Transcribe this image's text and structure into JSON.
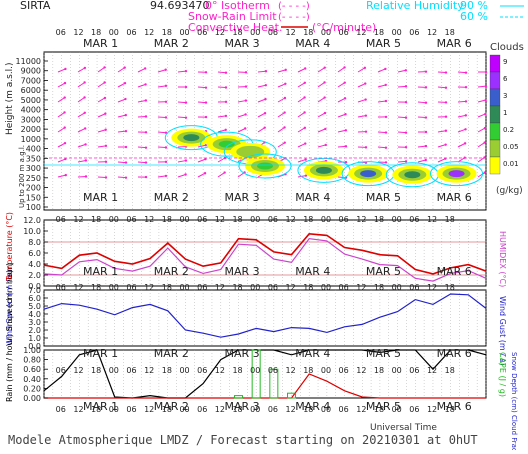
{
  "header": {
    "site": "SIRTA",
    "coords": "94.693470",
    "legend_isotherm": "0° Isotherm",
    "legend_snow_rain": "Snow-Rain Limit",
    "legend_convective": "Convective Heat.",
    "legend_convective_unit": "(°C/minute)",
    "legend_isotherm_box": "(- - - -)",
    "legend_snow_box": "(- - - -)",
    "rh_label": "Relative Humidity",
    "rh_90": "90 %",
    "rh_60": "60 %",
    "colors": {
      "magenta": "#ff22cc",
      "cyan": "#00e0ff",
      "red": "#dd0000",
      "blue": "#2222cc"
    }
  },
  "footer": {
    "title": "Modele Atmospherique LMDZ / Forecast starting on 20210301 at 0hUT",
    "universal_time": "Universal Time"
  },
  "time_axis": {
    "days": [
      "MAR 1",
      "MAR 2",
      "MAR 3",
      "MAR 4",
      "MAR 5",
      "MAR 6"
    ],
    "hour_ticks": [
      "06",
      "12",
      "18",
      "00",
      "06",
      "12",
      "18",
      "00",
      "06",
      "12",
      "18",
      "00",
      "06",
      "12",
      "18",
      "00",
      "06",
      "12",
      "18",
      "00",
      "06",
      "12",
      "18"
    ]
  },
  "cloud_scale": {
    "title": "Clouds",
    "unit": "(g/kg)",
    "labels": [
      "9",
      "6",
      "3",
      "1",
      "0.2",
      "0.05",
      "0.01"
    ],
    "colors": [
      "#c000ff",
      "#9b30ff",
      "#3a5fcd",
      "#2e8b57",
      "#32cd32",
      "#9acd32",
      "#ffff00"
    ]
  },
  "chart_data": [
    {
      "type": "heatmap",
      "ylabel": "Height (m a.s.l.)",
      "ylabel2": "Up to 200 m a.g.l.",
      "y_ticks": [
        "11000",
        "9000",
        "7000",
        "6000",
        "5000",
        "4000",
        "3000",
        "2000",
        "1000",
        "400",
        "350",
        "300",
        "250",
        "200",
        "150",
        "100"
      ],
      "x_range": [
        0,
        150
      ],
      "cloud_blobs": [
        {
          "x": 50,
          "y": 4800,
          "level": 3
        },
        {
          "x": 62,
          "y": 4200,
          "level": 2
        },
        {
          "x": 70,
          "y": 3500,
          "level": 1
        },
        {
          "x": 75,
          "y": 2200,
          "level": 2
        },
        {
          "x": 95,
          "y": 1800,
          "level": 3
        },
        {
          "x": 110,
          "y": 1500,
          "level": 4
        },
        {
          "x": 125,
          "y": 1400,
          "level": 3
        },
        {
          "x": 140,
          "y": 1500,
          "level": 5
        }
      ]
    },
    {
      "type": "line",
      "ylabel": "Temperature (°C)",
      "ylabel_right": "HUMIDEX (°C)",
      "y_ticks": [
        "12.0",
        "10.0",
        "8.0",
        "6.0",
        "4.0",
        "2.0",
        "0.0"
      ],
      "ylim": [
        0,
        12
      ],
      "x": [
        0,
        6,
        12,
        18,
        24,
        30,
        36,
        42,
        48,
        54,
        60,
        66,
        72,
        78,
        84,
        90,
        96,
        102,
        108,
        114,
        120,
        126,
        132,
        138,
        144,
        150
      ],
      "series": [
        {
          "name": "Temperature",
          "color": "#dd0000",
          "values": [
            3.8,
            3.2,
            5.6,
            6.0,
            4.5,
            4.0,
            5.0,
            7.8,
            4.9,
            3.6,
            4.2,
            8.6,
            8.4,
            6.2,
            5.7,
            9.5,
            9.2,
            7.0,
            6.5,
            5.7,
            5.5,
            3.0,
            2.2,
            3.3,
            3.9,
            2.7
          ]
        },
        {
          "name": "Humidex",
          "color": "#cc44cc",
          "values": [
            2.2,
            2.0,
            4.4,
            4.8,
            3.2,
            2.7,
            3.6,
            6.9,
            3.5,
            2.3,
            3.0,
            7.6,
            7.4,
            4.9,
            4.3,
            8.6,
            8.2,
            5.8,
            4.9,
            3.9,
            3.7,
            1.4,
            0.9,
            2.3,
            2.8,
            1.4
          ]
        }
      ]
    },
    {
      "type": "line",
      "ylabel": "Wind Speed (m / s)",
      "ylabel_right": "Wind Gust (m / s)",
      "y_ticks": [
        "7.0",
        "6.0",
        "5.0",
        "4.0",
        "3.0",
        "2.0",
        "1.0",
        "0.0"
      ],
      "ylim": [
        0,
        7
      ],
      "x": [
        0,
        6,
        12,
        18,
        24,
        30,
        36,
        42,
        48,
        54,
        60,
        66,
        72,
        78,
        84,
        90,
        96,
        102,
        108,
        114,
        120,
        126,
        132,
        138,
        144,
        150
      ],
      "series": [
        {
          "name": "Wind Speed",
          "color": "#2222cc",
          "values": [
            4.6,
            5.3,
            5.1,
            4.6,
            3.9,
            4.8,
            5.2,
            4.4,
            2.0,
            1.6,
            1.1,
            1.5,
            2.2,
            1.8,
            2.3,
            2.2,
            1.7,
            2.4,
            2.7,
            3.6,
            4.3,
            5.8,
            5.2,
            6.5,
            6.4,
            4.7
          ]
        }
      ]
    },
    {
      "type": "line",
      "ylabel": "Rain (mm / hour) Snow (cm / hour)",
      "ylabel_right": "CAPE (J / g)",
      "ylabel_right2": "Snow Depth (cm) Cloud Fraction",
      "y_ticks": [
        "1.00",
        "0.80",
        "0.60",
        "0.40",
        "0.20",
        "0.00"
      ],
      "ylim": [
        0,
        1
      ],
      "x": [
        0,
        6,
        12,
        18,
        24,
        30,
        36,
        42,
        48,
        54,
        60,
        66,
        72,
        78,
        84,
        90,
        96,
        102,
        108,
        114,
        120,
        126,
        132,
        138,
        144,
        150
      ],
      "series": [
        {
          "name": "Cloud Fraction",
          "color": "#000000",
          "values": [
            0.15,
            0.45,
            0.9,
            1.0,
            0.02,
            0.0,
            0.05,
            0.0,
            0.0,
            0.3,
            0.8,
            1.0,
            1.0,
            1.0,
            0.9,
            1.0,
            1.0,
            1.0,
            1.0,
            0.95,
            1.0,
            1.0,
            0.6,
            1.0,
            1.0,
            0.9
          ]
        },
        {
          "name": "CAPE",
          "color": "#dd0000",
          "values": [
            0,
            0,
            0,
            0,
            0,
            0,
            0,
            0,
            0,
            0,
            0,
            0,
            0,
            0,
            0,
            0.5,
            0.35,
            0.15,
            0.02,
            0,
            0,
            0,
            0,
            0,
            0,
            0
          ]
        },
        {
          "name": "Rain",
          "color": "#22bb22",
          "values": [
            0,
            0,
            0,
            0,
            0,
            0,
            0,
            0,
            0,
            0,
            0,
            0.05,
            1.0,
            0.6,
            0.1,
            0,
            0,
            0,
            0,
            0,
            0,
            0,
            0,
            0,
            0,
            0
          ]
        }
      ]
    }
  ]
}
